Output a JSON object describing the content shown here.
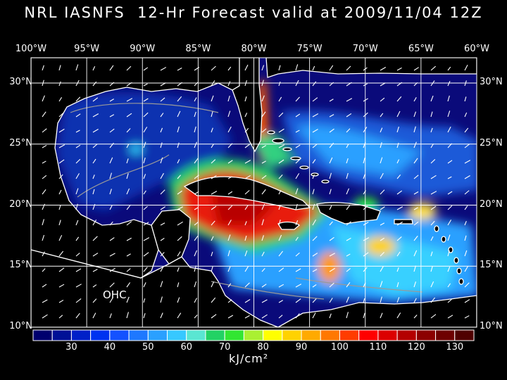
{
  "header": {
    "title": "NRL IASNFS  12-Hr Forecast valid at 2009/11/04 12Z"
  },
  "map": {
    "lon_labels": [
      "100°W",
      "95°W",
      "90°W",
      "85°W",
      "80°W",
      "75°W",
      "70°W",
      "65°W",
      "60°W"
    ],
    "lat_labels": [
      "30°N",
      "25°N",
      "20°N",
      "15°N",
      "10°N"
    ],
    "field_label": "OHC",
    "colors": {
      "ocean_low": "#0a0a7a",
      "ocean_mid": "#1f8cff",
      "warm": "#e81e0a",
      "land": "#000000",
      "coast": "#ffffff"
    }
  },
  "colorbar": {
    "colors": [
      "#00006e",
      "#001096",
      "#0020c8",
      "#0032f0",
      "#1452ff",
      "#1e78ff",
      "#2aa0ff",
      "#37c8ff",
      "#5ae6d2",
      "#22d264",
      "#32e632",
      "#aaf032",
      "#ffff00",
      "#ffd200",
      "#ffaa00",
      "#ff7800",
      "#ff3c00",
      "#ff0000",
      "#dc0000",
      "#b40000",
      "#8c0000",
      "#6e0000",
      "#500000"
    ],
    "tick_labels": [
      "30",
      "40",
      "50",
      "60",
      "70",
      "80",
      "90",
      "100",
      "110",
      "120",
      "130"
    ],
    "unit": "kJ/cm²"
  }
}
